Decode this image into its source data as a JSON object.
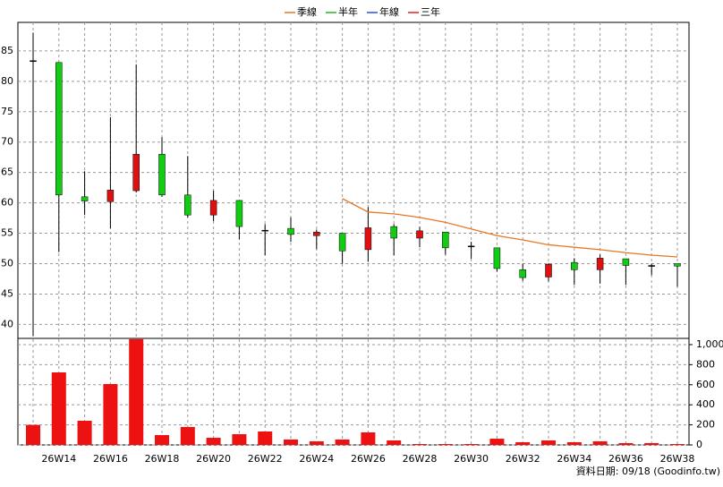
{
  "chart_data": {
    "type": "candlestick",
    "legend": [
      {
        "name": "季線",
        "color": "#e87722"
      },
      {
        "name": "半年",
        "color": "#22b422"
      },
      {
        "name": "年線",
        "color": "#2255dd"
      },
      {
        "name": "三年",
        "color": "#dd2222"
      }
    ],
    "categories": [
      null,
      "26W14",
      null,
      "26W16",
      null,
      "26W18",
      null,
      "26W20",
      null,
      "26W22",
      null,
      "26W24",
      null,
      "26W26",
      null,
      "26W28",
      null,
      "26W30",
      null,
      "26W32",
      null,
      "26W34",
      null,
      "26W36",
      null,
      "26W38"
    ],
    "open": [
      83.4,
      83.1,
      61.0,
      60.2,
      62.0,
      68.0,
      61.3,
      58.0,
      60.4,
      55.5,
      55.8,
      54.6,
      55.0,
      52.3,
      56.1,
      54.2,
      55.2,
      52.9,
      52.6,
      49.0,
      47.8,
      50.2,
      49.0,
      50.8,
      49.7,
      50.0
    ],
    "high": [
      88.0,
      83.1,
      65.2,
      74.1,
      82.8,
      70.8,
      67.7,
      62.0,
      60.4,
      56.5,
      57.6,
      55.6,
      55.0,
      59.3,
      56.5,
      56.1,
      55.2,
      53.6,
      52.6,
      50.0,
      50.1,
      50.9,
      51.5,
      50.8,
      50.0,
      50.0
    ],
    "low": [
      38.1,
      51.9,
      58.0,
      55.8,
      61.7,
      61.0,
      57.6,
      57.0,
      54.0,
      51.4,
      53.6,
      52.4,
      50.0,
      50.3,
      51.4,
      52.7,
      51.5,
      50.8,
      48.7,
      47.2,
      47.1,
      46.5,
      46.7,
      46.5,
      48.1,
      46.2
    ],
    "close": [
      83.4,
      61.3,
      60.3,
      62.1,
      68.0,
      61.3,
      58.0,
      60.4,
      56.1,
      55.5,
      54.8,
      55.2,
      52.1,
      55.9,
      54.2,
      55.4,
      52.6,
      52.9,
      49.2,
      47.7,
      49.9,
      49.0,
      50.9,
      49.7,
      49.7,
      49.6
    ],
    "up_color": "#dd1111",
    "down_color": "#11cc11",
    "flat_color": "#000000",
    "series": [
      {
        "name": "季線",
        "color": "#e87722",
        "values": [
          null,
          null,
          null,
          null,
          null,
          null,
          null,
          null,
          null,
          null,
          null,
          null,
          60.7,
          58.5,
          58.2,
          57.6,
          56.8,
          55.7,
          54.6,
          53.9,
          53.1,
          52.7,
          52.3,
          51.8,
          51.4,
          51.1
        ]
      }
    ],
    "ylim": [
      37.7,
      89.7
    ],
    "yticks": [
      40,
      45,
      50,
      55,
      60,
      65,
      70,
      75,
      80,
      85
    ],
    "volume": {
      "color": "#ee1111",
      "values": [
        200,
        723,
        241,
        607,
        1054,
        98,
        179,
        71,
        107,
        134,
        54,
        36,
        54,
        125,
        45,
        9,
        9,
        9,
        62,
        27,
        45,
        27,
        36,
        18,
        18,
        9
      ]
    },
    "y2lim": [
      0,
      1062
    ],
    "y2ticks": [
      0,
      200,
      400,
      600,
      800,
      {
        "value": 1000,
        "label": "1,000"
      }
    ],
    "grid": true,
    "footer": "資料日期: 09/18 (Goodinfo.tw)"
  }
}
